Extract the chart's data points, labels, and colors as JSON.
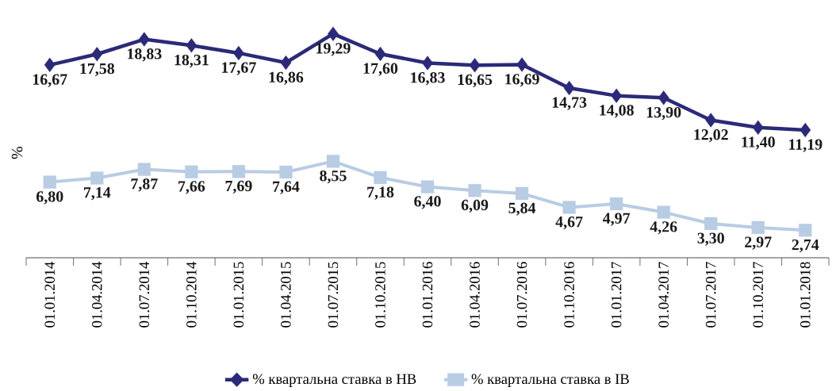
{
  "chart_data": {
    "type": "line",
    "ylabel": "%",
    "tick_labels": "x",
    "legend": "bottom",
    "categories": [
      "01.01.2014",
      "01.04.2014",
      "01.07.2014",
      "01.10.2014",
      "01.01.2015",
      "01.04.2015",
      "01.07.2015",
      "01.10.2015",
      "01.01.2016",
      "01.04.2016",
      "01.07.2016",
      "01.10.2016",
      "01.01.2017",
      "01.04.2017",
      "01.07.2017",
      "01.10.2017",
      "01.01.2018"
    ],
    "series": [
      {
        "name": "% квартальна ставка в НВ",
        "color": "#2b2a78",
        "marker": "diamond",
        "values": [
          16.67,
          17.58,
          18.83,
          18.31,
          17.67,
          16.86,
          19.29,
          17.6,
          16.83,
          16.65,
          16.69,
          14.73,
          14.08,
          13.9,
          12.02,
          11.4,
          11.19
        ],
        "value_labels": [
          "16,67",
          "17,58",
          "18,83",
          "18,31",
          "17,67",
          "16,86",
          "19,29",
          "17,60",
          "16,83",
          "16,65",
          "16,69",
          "14,73",
          "14,08",
          "13,90",
          "12,02",
          "11,40",
          "11,19"
        ]
      },
      {
        "name": "%  квартальна ставка в ІВ",
        "color": "#b8cce4",
        "marker": "square",
        "values": [
          6.8,
          7.14,
          7.87,
          7.66,
          7.69,
          7.64,
          8.55,
          7.18,
          6.4,
          6.09,
          5.84,
          4.67,
          4.97,
          4.26,
          3.3,
          2.97,
          2.74
        ],
        "value_labels": [
          "6,80",
          "7,14",
          "7,87",
          "7,66",
          "7,69",
          "7,64",
          "8,55",
          "7,18",
          "6,40",
          "6,09",
          "5,84",
          "4,67",
          "4,97",
          "4,26",
          "3,30",
          "2,97",
          "2,74"
        ]
      }
    ]
  }
}
